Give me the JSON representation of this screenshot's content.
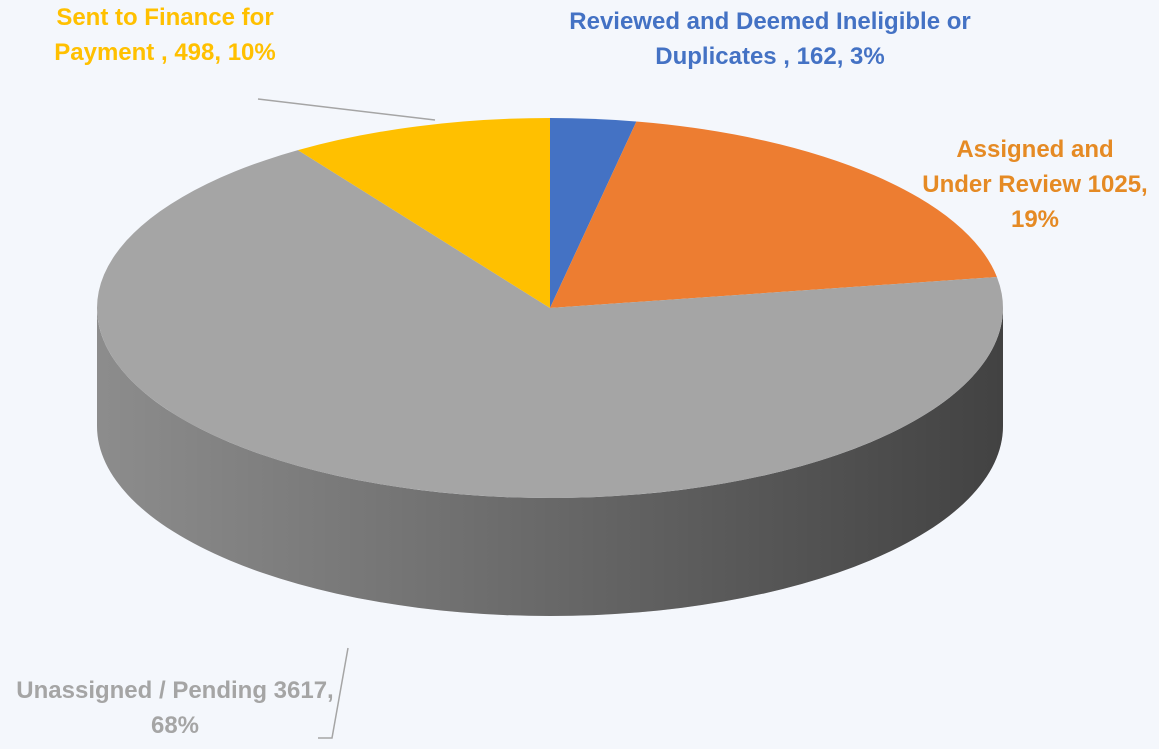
{
  "chart_data": {
    "type": "pie3d",
    "categories": [
      "Reviewed and Deemed Ineligible or Duplicates ,",
      "Assigned and Under Review",
      "Unassigned / Pending",
      "Sent to Finance for Payment ,"
    ],
    "values": [
      162,
      1025,
      3617,
      498
    ],
    "value_labels": [
      "162, 3%",
      "1025, 19%",
      "3617, 68%",
      "498, 10%"
    ],
    "colors": [
      "#4472c4",
      "#ed7d31",
      "#a5a5a5",
      "#ffc000"
    ],
    "label_colors": [
      "#4472c4",
      "#e58a24",
      "#a5a5a5",
      "#ffc000"
    ]
  }
}
